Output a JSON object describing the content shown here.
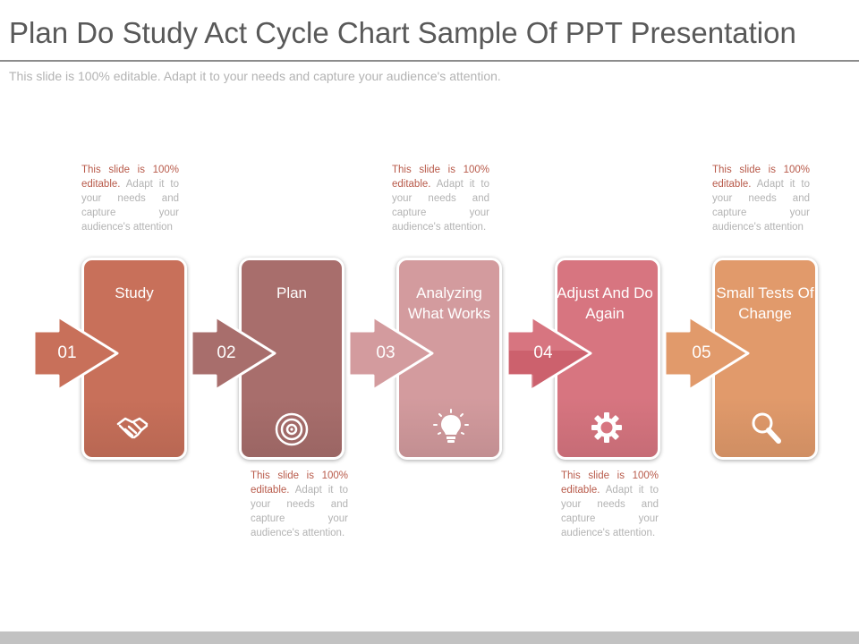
{
  "title": "Plan Do Study Act Cycle Chart Sample Of PPT Presentation",
  "subtitle": "This slide is 100% editable. Adapt it to your needs and capture your audience's attention.",
  "notes": [
    {
      "highlight": "This slide is 100% editable.",
      "rest": " Adapt it to your needs and capture your audience's attention"
    },
    {
      "highlight": "This slide is 100% editable.",
      "rest": " Adapt it to your needs and capture your audience's attention."
    },
    {
      "highlight": "This slide is 100% editable.",
      "rest": " Adapt it to your needs and capture your audience's attention."
    },
    {
      "highlight": "This slide is 100% editable.",
      "rest": " Adapt it to your needs and capture your audience's attention."
    },
    {
      "highlight": "This slide is 100% editable.",
      "rest": " Adapt it to your needs and capture your audience's attention"
    }
  ],
  "steps": [
    {
      "number": "01",
      "label": "Study",
      "icon": "handshake-icon",
      "color": "#c8705a"
    },
    {
      "number": "02",
      "label": "Plan",
      "icon": "target-icon",
      "color": "#a86e6c"
    },
    {
      "number": "03",
      "label": "Analyzing What Works",
      "icon": "lightbulb-icon",
      "color": "#d39b9e"
    },
    {
      "number": "04",
      "label": "Adjust And Do Again",
      "icon": "gear-icon",
      "color": "#d77580"
    },
    {
      "number": "05",
      "label": "Small Tests Of Change",
      "icon": "magnifier-icon",
      "color": "#e19a6b"
    }
  ]
}
